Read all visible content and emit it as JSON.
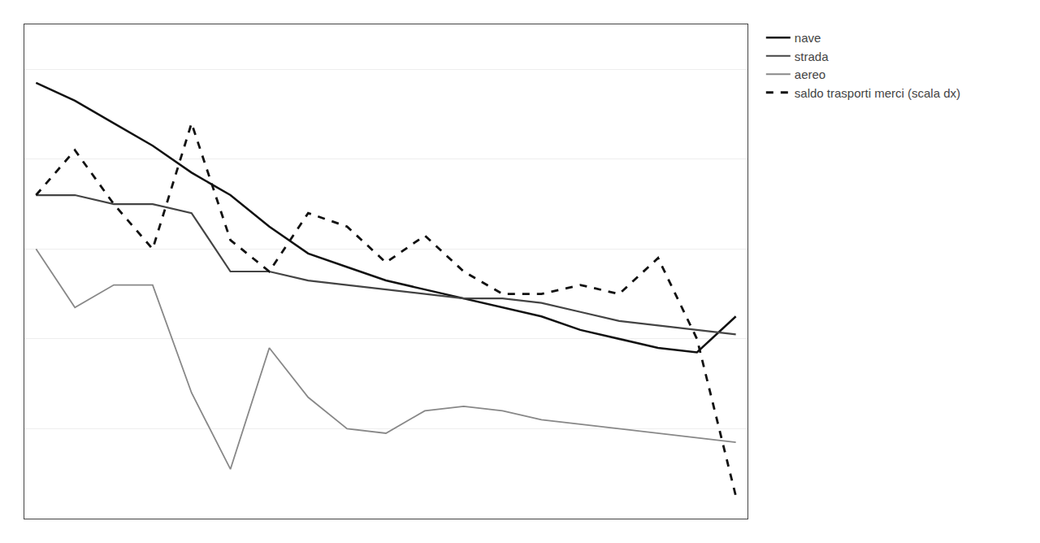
{
  "chart_data": {
    "type": "line",
    "x": [
      0,
      1,
      2,
      3,
      4,
      5,
      6,
      7,
      8,
      9,
      10,
      11,
      12,
      13,
      14,
      15,
      16,
      17,
      18
    ],
    "series": [
      {
        "name": "nave",
        "color": "#111111",
        "line_style": "solid",
        "values": [
          97,
          93,
          88,
          83,
          77,
          72,
          65,
          59,
          56,
          53,
          51,
          49,
          47,
          45,
          42,
          40,
          38,
          37,
          45
        ]
      },
      {
        "name": "strada",
        "color": "#444444",
        "line_style": "solid",
        "values": [
          72,
          72,
          70,
          70,
          68,
          55,
          55,
          53,
          52,
          51,
          50,
          49,
          49,
          48,
          46,
          44,
          43,
          42,
          41
        ]
      },
      {
        "name": "aereo",
        "color": "#888888",
        "line_style": "solid",
        "values": [
          60,
          47,
          52,
          52,
          28,
          11,
          38,
          27,
          20,
          19,
          24,
          25,
          24,
          22,
          21,
          20,
          19,
          18,
          17
        ]
      },
      {
        "name": "saldo trasporti merci (scala dx)",
        "color": "#111111",
        "line_style": "dashed",
        "axis": "y2",
        "values": [
          72,
          82,
          70,
          60,
          88,
          62,
          55,
          68,
          65,
          57,
          63,
          55,
          50,
          50,
          52,
          50,
          58,
          40,
          5
        ]
      }
    ],
    "xlim": [
      -0.3,
      18.3
    ],
    "ylim": [
      0,
      110
    ],
    "yticks": [
      0,
      20,
      40,
      60,
      80,
      100
    ],
    "y2lim": [
      0,
      110
    ],
    "grid": true,
    "tick_labels": false,
    "legend": "upper right"
  }
}
